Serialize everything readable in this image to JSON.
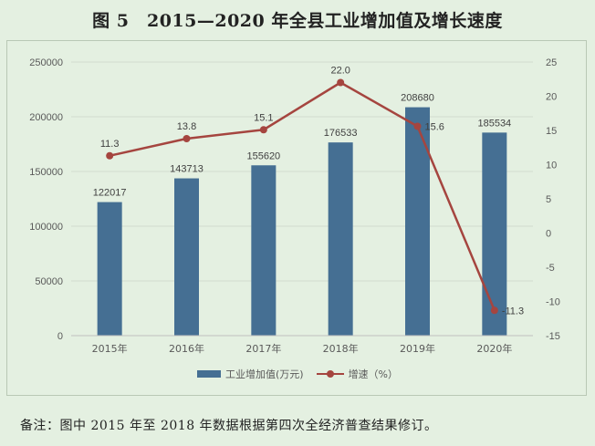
{
  "title": "图 5　2015—2020 年全县工业增加值及增长速度",
  "note": "备注：图中 2015 年至 2018 年数据根据第四次全经济普查结果修订。",
  "legend": {
    "bar_label": "工业增加值(万元)",
    "line_label": "增速（%）"
  },
  "colors": {
    "bar": "#456f93",
    "line": "#a5453f",
    "grid": "#d2dcd0",
    "background": "#e4f0e1"
  },
  "chart_data": {
    "type": "bar",
    "categories": [
      "2015年",
      "2016年",
      "2017年",
      "2018年",
      "2019年",
      "2020年"
    ],
    "series": [
      {
        "name": "工业增加值(万元)",
        "type": "bar",
        "axis": "left",
        "values": [
          122017,
          143713,
          155620,
          176533,
          208680,
          185534
        ],
        "labels": [
          "122017",
          "143713",
          "155620",
          "176533",
          "208680",
          "185534"
        ]
      },
      {
        "name": "增速（%）",
        "type": "line",
        "axis": "right",
        "values": [
          11.3,
          13.8,
          15.1,
          22.0,
          15.6,
          -11.3
        ],
        "labels": [
          "11.3",
          "13.8",
          "15.1",
          "22.0",
          "15.6",
          "-11.3"
        ]
      }
    ],
    "y_left": {
      "lim": [
        0,
        250000
      ],
      "ticks": [
        "0",
        "50000",
        "100000",
        "150000",
        "200000",
        "250000"
      ]
    },
    "y_right": {
      "lim": [
        -15,
        25
      ],
      "ticks": [
        "-15",
        "-10",
        "-5",
        "0",
        "5",
        "10",
        "15",
        "20",
        "25"
      ]
    },
    "grid": true,
    "legend_position": "bottom"
  }
}
